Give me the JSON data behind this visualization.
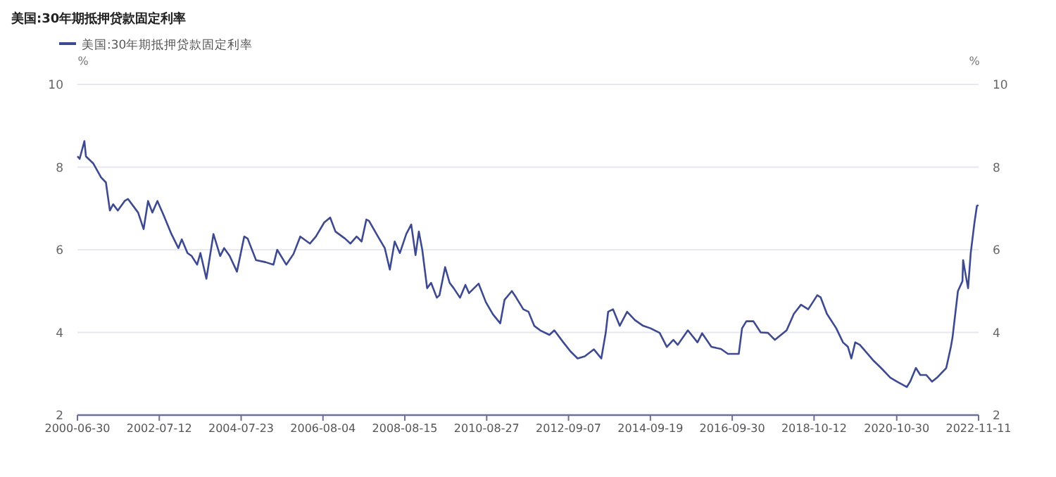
{
  "chart_data": {
    "type": "line",
    "title": "美国:30年期抵押贷款固定利率",
    "ylabel": "%",
    "y2label": "%",
    "legend": "top left",
    "grid": "y",
    "xlim": [
      "2000-06-30",
      "2022-11-11"
    ],
    "xticks": [
      "2000-06-30",
      "2002-07-12",
      "2004-07-23",
      "2006-08-04",
      "2008-08-15",
      "2010-08-27",
      "2012-09-07",
      "2014-09-19",
      "2016-09-30",
      "2018-10-12",
      "2020-10-30",
      "2022-11-11"
    ],
    "ylim": [
      2,
      10
    ],
    "yticks": [
      2,
      4,
      6,
      8,
      10
    ],
    "y2lim": [
      2,
      10
    ],
    "y2ticks": [
      2,
      4,
      6,
      8,
      10
    ],
    "x": [
      "2000-06-30",
      "2000-07-20",
      "2000-09-01",
      "2000-09-15",
      "2000-11-20",
      "2001-01-30",
      "2001-03-15",
      "2001-04-20",
      "2001-05-20",
      "2001-07-01",
      "2001-09-01",
      "2001-10-01",
      "2002-01-01",
      "2002-02-20",
      "2002-04-01",
      "2002-05-10",
      "2002-06-25",
      "2002-08-20",
      "2002-10-30",
      "2003-01-01",
      "2003-02-01",
      "2003-03-25",
      "2003-05-01",
      "2003-06-20",
      "2003-07-20",
      "2003-09-12",
      "2003-11-15",
      "2004-01-15",
      "2004-02-20",
      "2004-04-10",
      "2004-06-15",
      "2004-08-20",
      "2004-09-20",
      "2004-12-05",
      "2005-03-01",
      "2005-05-12",
      "2005-06-15",
      "2005-09-05",
      "2005-11-10",
      "2006-01-10",
      "2006-04-08",
      "2006-06-01",
      "2006-08-15",
      "2006-10-08",
      "2006-11-25",
      "2007-02-20",
      "2007-04-10",
      "2007-06-05",
      "2007-07-20",
      "2007-09-01",
      "2007-09-25",
      "2007-12-15",
      "2008-02-15",
      "2008-04-01",
      "2008-05-15",
      "2008-07-01",
      "2008-08-28",
      "2008-10-12",
      "2008-11-20",
      "2008-12-20",
      "2009-01-20",
      "2009-03-05",
      "2009-04-10",
      "2009-06-01",
      "2009-06-25",
      "2009-08-15",
      "2009-09-25",
      "2009-11-01",
      "2009-12-28",
      "2010-02-15",
      "2010-03-20",
      "2010-06-15",
      "2010-08-20",
      "2010-10-22",
      "2010-12-28",
      "2011-02-05",
      "2011-04-12",
      "2011-05-20",
      "2011-07-25",
      "2011-09-10",
      "2011-11-01",
      "2011-12-25",
      "2012-03-18",
      "2012-05-01",
      "2012-07-22",
      "2012-09-25",
      "2012-11-28",
      "2013-02-01",
      "2013-04-25",
      "2013-07-01",
      "2013-08-10",
      "2013-09-01",
      "2013-10-15",
      "2013-12-15",
      "2014-02-20",
      "2014-05-01",
      "2014-07-15",
      "2014-09-20",
      "2014-12-12",
      "2015-02-15",
      "2015-04-15",
      "2015-05-25",
      "2015-08-25",
      "2015-11-20",
      "2016-01-01",
      "2016-03-25",
      "2016-06-20",
      "2016-08-22",
      "2016-11-28",
      "2016-12-28",
      "2017-02-05",
      "2017-04-10",
      "2017-06-15",
      "2017-08-20",
      "2017-10-22",
      "2018-02-05",
      "2018-04-12",
      "2018-06-15",
      "2018-08-20",
      "2018-11-10",
      "2018-12-10",
      "2019-02-05",
      "2019-05-01",
      "2019-07-01",
      "2019-08-15",
      "2019-09-15",
      "2019-10-20",
      "2019-12-01",
      "2020-04-05",
      "2020-06-10",
      "2020-09-01",
      "2020-11-01",
      "2021-01-30",
      "2021-03-01",
      "2021-04-22",
      "2021-06-01",
      "2021-07-25",
      "2021-09-15",
      "2021-11-01",
      "2022-01-22",
      "2022-03-05",
      "2022-03-20",
      "2022-05-08",
      "2022-06-18",
      "2022-06-24",
      "2022-07-10",
      "2022-08-08",
      "2022-09-01",
      "2022-10-05",
      "2022-10-27",
      "2022-11-10"
    ],
    "series": [
      {
        "name": "美国:30年期抵押贷款固定利率",
        "color": "#3d4a8f",
        "values": [
          8.26,
          8.2,
          8.63,
          8.26,
          8.09,
          7.75,
          7.63,
          6.95,
          7.1,
          6.95,
          7.18,
          7.23,
          6.9,
          6.5,
          7.18,
          6.9,
          7.18,
          6.84,
          6.38,
          6.04,
          6.25,
          5.92,
          5.85,
          5.64,
          5.92,
          5.3,
          6.38,
          5.85,
          6.04,
          5.85,
          5.47,
          6.32,
          6.27,
          5.75,
          5.7,
          5.64,
          6.0,
          5.64,
          5.9,
          6.32,
          6.15,
          6.32,
          6.66,
          6.78,
          6.44,
          6.27,
          6.15,
          6.32,
          6.2,
          6.73,
          6.7,
          6.32,
          6.04,
          5.52,
          6.2,
          5.92,
          6.38,
          6.61,
          5.87,
          6.44,
          6.0,
          5.07,
          5.2,
          4.84,
          4.9,
          5.58,
          5.2,
          5.07,
          4.84,
          5.15,
          4.95,
          5.18,
          4.73,
          4.44,
          4.22,
          4.79,
          5.0,
          4.85,
          4.56,
          4.5,
          4.16,
          4.05,
          3.94,
          4.05,
          3.76,
          3.54,
          3.37,
          3.42,
          3.59,
          3.37,
          3.99,
          4.5,
          4.56,
          4.16,
          4.5,
          4.3,
          4.16,
          4.1,
          3.99,
          3.65,
          3.82,
          3.7,
          4.05,
          3.76,
          3.98,
          3.65,
          3.6,
          3.48,
          3.48,
          4.1,
          4.27,
          4.27,
          4.0,
          3.99,
          3.82,
          4.05,
          4.45,
          4.67,
          4.56,
          4.9,
          4.85,
          4.45,
          4.1,
          3.76,
          3.65,
          3.37,
          3.76,
          3.7,
          3.31,
          3.14,
          2.91,
          2.81,
          2.68,
          2.81,
          3.14,
          2.97,
          2.97,
          2.81,
          2.91,
          3.14,
          3.65,
          3.88,
          5.0,
          5.24,
          5.75,
          5.5,
          5.07,
          5.92,
          6.66,
          7.06,
          7.08
        ]
      }
    ]
  }
}
